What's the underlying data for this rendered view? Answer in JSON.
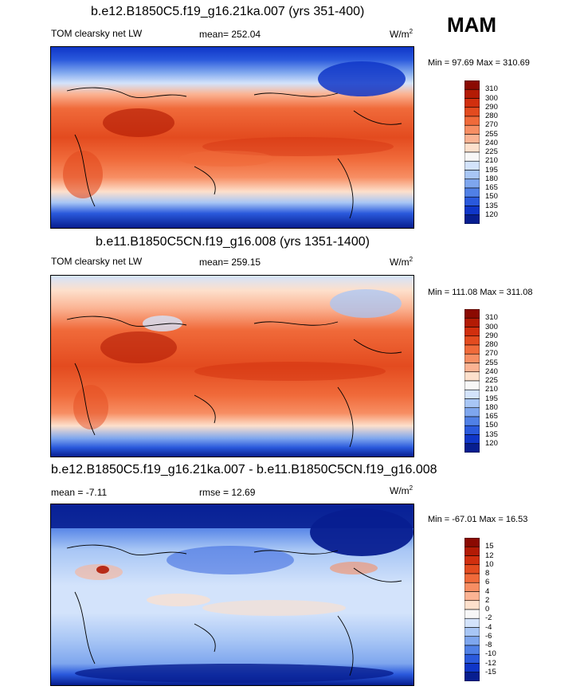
{
  "header": {
    "season": "MAM"
  },
  "panels": [
    {
      "title": "b.e12.B1850C5.f19_g16.21ka.007 (yrs 351-400)",
      "left_label": "TOM clearsky net LW",
      "center_label": "mean= 252.04",
      "units": "W/m",
      "units_sup": "2",
      "minmax": "Min =  97.69 Max = 310.69"
    },
    {
      "title": "b.e11.B1850C5CN.f19_g16.008 (yrs 1351-1400)",
      "left_label": "TOM clearsky net LW",
      "center_label": "mean= 259.15",
      "units": "W/m",
      "units_sup": "2",
      "minmax": "Min = 111.08 Max = 311.08"
    },
    {
      "title": "b.e12.B1850C5.f19_g16.21ka.007 - b.e11.B1850C5CN.f19_g16.008",
      "left_label": "mean =  -7.11",
      "center_label": "rmse =  12.69",
      "units": "W/m",
      "units_sup": "2",
      "minmax": "Min = -67.01 Max =  16.53"
    }
  ],
  "chart_data": [
    {
      "type": "heatmap",
      "title": "b.e12.B1850C5.f19_g16.21ka.007 (yrs 351-400)",
      "variable": "TOM clearsky net LW",
      "units": "W/m2",
      "mean": 252.04,
      "min": 97.69,
      "max": 310.69,
      "colorbar_levels": [
        310,
        300,
        290,
        280,
        270,
        255,
        240,
        225,
        210,
        195,
        180,
        165,
        150,
        135,
        120
      ],
      "colorbar_colors": [
        "#8b0a02",
        "#b31b05",
        "#d12f0e",
        "#e34b1f",
        "#f06a3a",
        "#f78e63",
        "#fbb393",
        "#fde0cc",
        "#f7f7f7",
        "#d3e3fb",
        "#a8c6f5",
        "#7ea6ee",
        "#5080e6",
        "#2a59dc",
        "#0f36c8",
        "#071e90"
      ]
    },
    {
      "type": "heatmap",
      "title": "b.e11.B1850C5CN.f19_g16.008 (yrs 1351-1400)",
      "variable": "TOM clearsky net LW",
      "units": "W/m2",
      "mean": 259.15,
      "min": 111.08,
      "max": 311.08,
      "colorbar_levels": [
        310,
        300,
        290,
        280,
        270,
        255,
        240,
        225,
        210,
        195,
        180,
        165,
        150,
        135,
        120
      ],
      "colorbar_colors": [
        "#8b0a02",
        "#b31b05",
        "#d12f0e",
        "#e34b1f",
        "#f06a3a",
        "#f78e63",
        "#fbb393",
        "#fde0cc",
        "#f7f7f7",
        "#d3e3fb",
        "#a8c6f5",
        "#7ea6ee",
        "#5080e6",
        "#2a59dc",
        "#0f36c8",
        "#071e90"
      ]
    },
    {
      "type": "heatmap",
      "title": "b.e12.B1850C5.f19_g16.21ka.007 - b.e11.B1850C5CN.f19_g16.008",
      "units": "W/m2",
      "mean": -7.11,
      "rmse": 12.69,
      "min": -67.01,
      "max": 16.53,
      "colorbar_levels": [
        15,
        12,
        10,
        8,
        6,
        4,
        2,
        0,
        -2,
        -4,
        -6,
        -8,
        -10,
        -12,
        -15
      ],
      "colorbar_colors": [
        "#8b0a02",
        "#b31b05",
        "#d12f0e",
        "#e34b1f",
        "#f06a3a",
        "#f78e63",
        "#fbb393",
        "#fde0cc",
        "#f7f7f7",
        "#d3e3fb",
        "#a8c6f5",
        "#7ea6ee",
        "#5080e6",
        "#2a59dc",
        "#0f36c8",
        "#071e90"
      ]
    }
  ]
}
